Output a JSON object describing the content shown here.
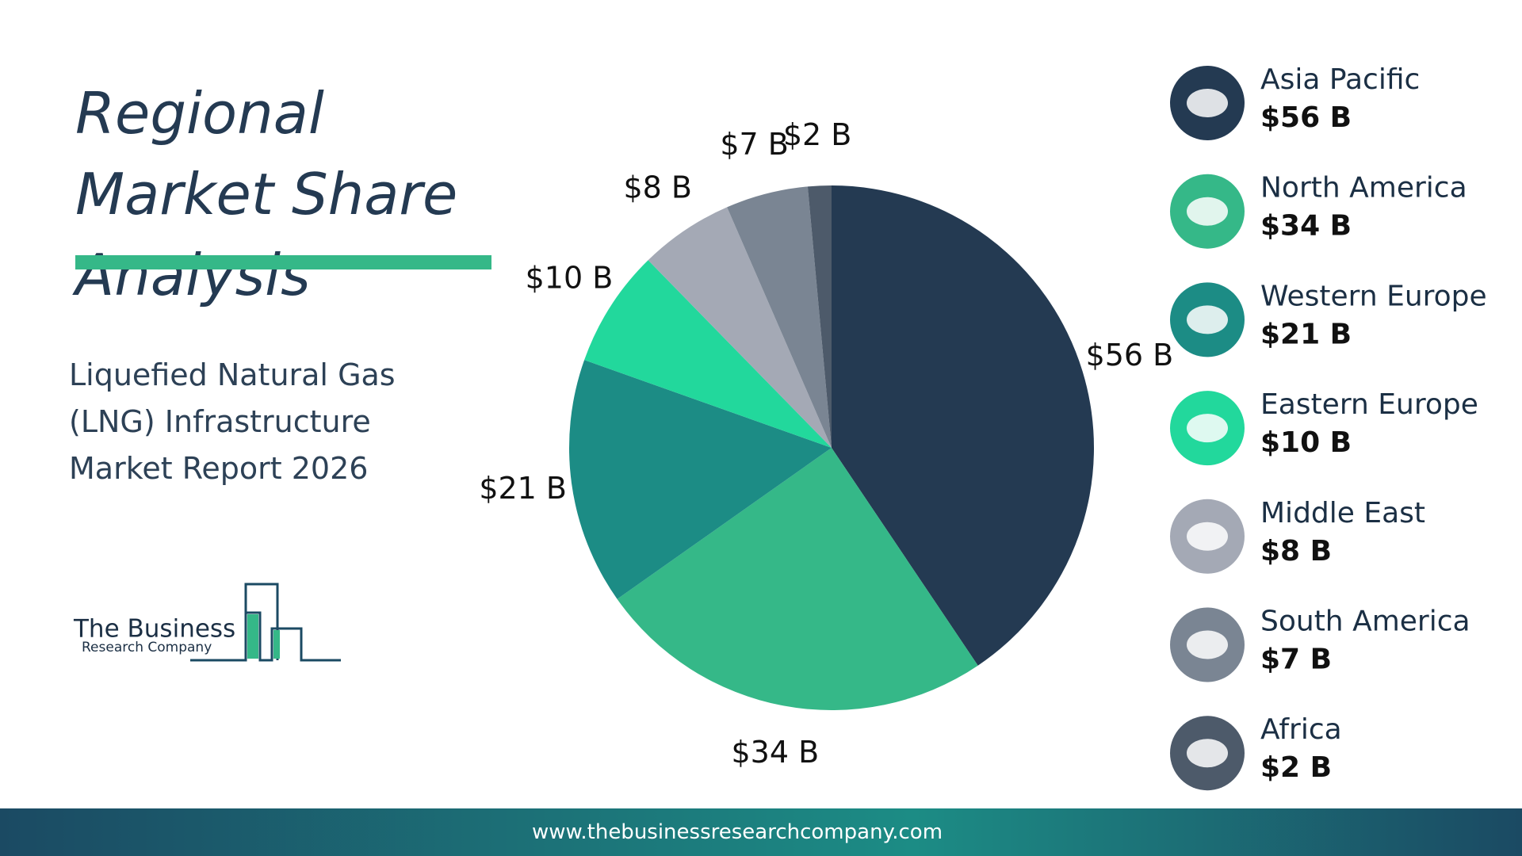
{
  "chart_data": {
    "type": "pie",
    "title": "Regional Market Share Analysis",
    "subtitle": "Liquefied Natural Gas (LNG) Infrastructure Market Report 2026",
    "categories": [
      "Asia Pacific",
      "North America",
      "Western Europe",
      "Eastern Europe",
      "Middle East",
      "South America",
      "Africa"
    ],
    "values": [
      56,
      34,
      21,
      10,
      8,
      7,
      2
    ],
    "value_labels": [
      "$56 B",
      "$34 B",
      "$21 B",
      "$10 B",
      "$8 B",
      "$7 B",
      "$2 B"
    ],
    "colors": [
      "#243a52",
      "#35b888",
      "#1c8c85",
      "#22d89c",
      "#a4a9b5",
      "#7a8593",
      "#4d5a6a"
    ]
  },
  "logo": {
    "line1": "The Business",
    "line2": "Research Company"
  },
  "footer": {
    "url": "www.thebusinessresearchcompany.com"
  }
}
